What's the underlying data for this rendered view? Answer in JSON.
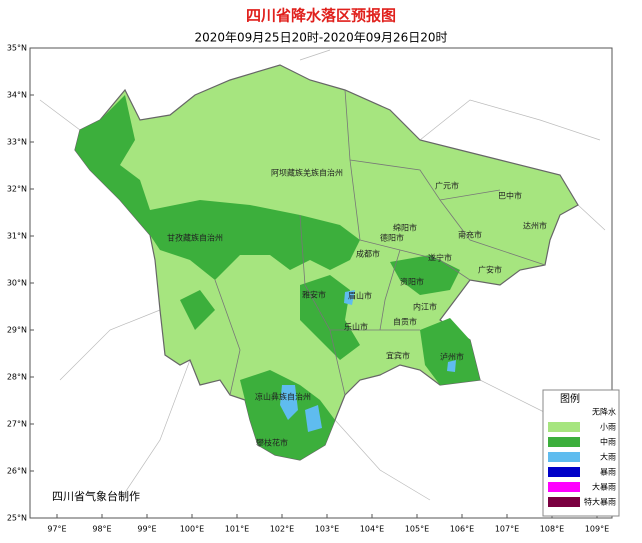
{
  "header": {
    "title": "四川省降水落区预报图",
    "subtitle": "2020年09月25日20时-2020年09月26日20时"
  },
  "lat_labels": [
    "35°N",
    "34°N",
    "33°N",
    "32°N",
    "31°N",
    "30°N",
    "29°N",
    "28°N",
    "27°N",
    "26°N",
    "25°N"
  ],
  "lon_labels": [
    "97°E",
    "98°E",
    "99°E",
    "100°E",
    "101°E",
    "102°E",
    "103°E",
    "104°E",
    "105°E",
    "106°E",
    "107°E",
    "108°E",
    "109°E"
  ],
  "regions": [
    "阿坝藏族羌族自治州",
    "甘孜藏族自治州",
    "广元市",
    "巴中市",
    "绵阳市",
    "南充市",
    "达州市",
    "德阳市",
    "成都市",
    "遂宁市",
    "广安市",
    "资阳市",
    "雅安市",
    "眉山市",
    "乐山市",
    "内江市",
    "自贡市",
    "宜宾市",
    "泸州市",
    "凉山彝族自治州",
    "攀枝花市"
  ],
  "legend": {
    "title": "图例",
    "items": [
      {
        "label": "无降水",
        "color": "#ffffff"
      },
      {
        "label": "小雨",
        "color": "#a6e57f"
      },
      {
        "label": "中雨",
        "color": "#3caf3c"
      },
      {
        "label": "大雨",
        "color": "#5fbcef"
      },
      {
        "label": "暴雨",
        "color": "#0000c8"
      },
      {
        "label": "大暴雨",
        "color": "#ff00ff"
      },
      {
        "label": "特大暴雨",
        "color": "#7a0040"
      }
    ]
  },
  "credit": "四川省气象台制作"
}
